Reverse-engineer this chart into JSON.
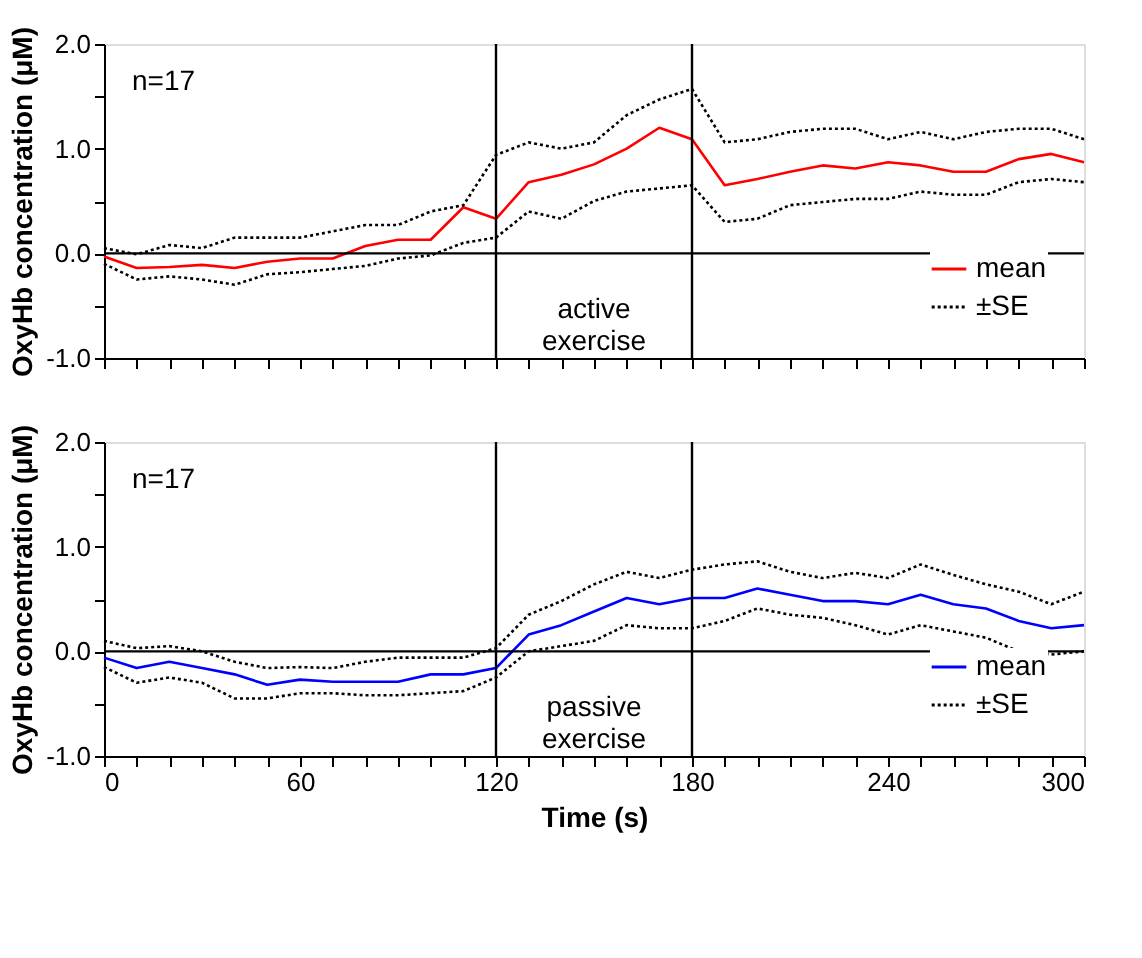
{
  "chart_data": [
    {
      "type": "line",
      "ylabel": "OxyHb concentration (μM)",
      "tick_labels": "y",
      "legend": "bottom right",
      "xlim": [
        0,
        300
      ],
      "ylim": [
        -1,
        2
      ],
      "xticks": [
        0,
        10,
        20,
        30,
        40,
        50,
        60,
        70,
        80,
        90,
        100,
        110,
        120,
        130,
        140,
        150,
        160,
        170,
        180,
        190,
        200,
        210,
        220,
        230,
        240,
        250,
        260,
        270,
        280,
        290,
        300
      ],
      "yticks": [
        {
          "value": -1,
          "label": "-1.0"
        },
        {
          "value": -0.5,
          "label": null
        },
        {
          "value": 0,
          "label": "0.0"
        },
        {
          "value": 0.5,
          "label": null
        },
        {
          "value": 1,
          "label": "1.0"
        },
        {
          "value": 1.5,
          "label": null
        },
        {
          "value": 2,
          "label": "2.0"
        }
      ],
      "x": [
        0,
        10,
        20,
        30,
        40,
        50,
        60,
        70,
        80,
        90,
        100,
        110,
        120,
        130,
        140,
        150,
        160,
        170,
        180,
        190,
        200,
        210,
        220,
        230,
        240,
        250,
        260,
        270,
        280,
        290,
        300
      ],
      "series": [
        {
          "name": "mean",
          "color": "#ff0000",
          "line_style": "solid",
          "values": [
            -0.03,
            -0.14,
            -0.13,
            -0.11,
            -0.14,
            -0.08,
            -0.05,
            -0.05,
            0.07,
            0.13,
            0.13,
            0.44,
            0.33,
            0.68,
            0.75,
            0.85,
            1.0,
            1.2,
            1.09,
            0.65,
            0.71,
            0.78,
            0.84,
            0.81,
            0.87,
            0.84,
            0.78,
            0.78,
            0.9,
            0.95,
            0.87
          ]
        },
        {
          "name": "±SE",
          "color": "#000000",
          "line_style": "dotted",
          "values": [
            0.05,
            -0.01,
            0.08,
            0.05,
            0.15,
            0.15,
            0.15,
            0.21,
            0.27,
            0.27,
            0.4,
            0.46,
            0.94,
            1.06,
            1.0,
            1.06,
            1.32,
            1.47,
            1.57,
            1.06,
            1.09,
            1.16,
            1.19,
            1.19,
            1.09,
            1.16,
            1.09,
            1.16,
            1.19,
            1.19,
            1.09
          ]
        },
        {
          "color": "#000000",
          "line_style": "dotted",
          "values": [
            -0.1,
            -0.25,
            -0.22,
            -0.25,
            -0.3,
            -0.2,
            -0.18,
            -0.15,
            -0.12,
            -0.05,
            -0.02,
            0.1,
            0.15,
            0.4,
            0.33,
            0.5,
            0.59,
            0.62,
            0.65,
            0.3,
            0.33,
            0.46,
            0.49,
            0.52,
            0.52,
            0.59,
            0.56,
            0.56,
            0.68,
            0.71,
            0.68
          ]
        }
      ],
      "ref_lines": [
        {
          "axis": "x",
          "value": 120,
          "color": "#000000"
        },
        {
          "axis": "x",
          "value": 180,
          "color": "#000000"
        },
        {
          "axis": "y",
          "value": 0,
          "color": "#000000"
        }
      ],
      "annotations": [
        "n=17",
        "active exercise"
      ]
    },
    {
      "type": "line",
      "ylabel": "OxyHb concentration (μM)",
      "xlabel": "Time (s)",
      "legend": "bottom right",
      "xlim": [
        0,
        300
      ],
      "ylim": [
        -1,
        2
      ],
      "xticks": [
        0,
        {
          "value": 10,
          "label": null
        },
        {
          "value": 20,
          "label": null
        },
        {
          "value": 30,
          "label": null
        },
        {
          "value": 40,
          "label": null
        },
        {
          "value": 50,
          "label": null
        },
        60,
        {
          "value": 70,
          "label": null
        },
        {
          "value": 80,
          "label": null
        },
        {
          "value": 90,
          "label": null
        },
        {
          "value": 100,
          "label": null
        },
        {
          "value": 110,
          "label": null
        },
        120,
        {
          "value": 130,
          "label": null
        },
        {
          "value": 140,
          "label": null
        },
        {
          "value": 150,
          "label": null
        },
        {
          "value": 160,
          "label": null
        },
        {
          "value": 170,
          "label": null
        },
        180,
        {
          "value": 190,
          "label": null
        },
        {
          "value": 200,
          "label": null
        },
        {
          "value": 210,
          "label": null
        },
        {
          "value": 220,
          "label": null
        },
        {
          "value": 230,
          "label": null
        },
        240,
        {
          "value": 250,
          "label": null
        },
        {
          "value": 260,
          "label": null
        },
        {
          "value": 270,
          "label": null
        },
        {
          "value": 280,
          "label": null
        },
        {
          "value": 290,
          "label": null
        },
        300
      ],
      "yticks": [
        {
          "value": -1,
          "label": "-1.0"
        },
        {
          "value": -0.5,
          "label": null
        },
        {
          "value": 0,
          "label": "0.0"
        },
        {
          "value": 0.5,
          "label": null
        },
        {
          "value": 1,
          "label": "1.0"
        },
        {
          "value": 1.5,
          "label": null
        },
        {
          "value": 2,
          "label": "2.0"
        }
      ],
      "x": [
        0,
        10,
        20,
        30,
        40,
        50,
        60,
        70,
        80,
        90,
        100,
        110,
        120,
        130,
        140,
        150,
        160,
        170,
        180,
        190,
        200,
        210,
        220,
        230,
        240,
        250,
        260,
        270,
        280,
        290,
        300
      ],
      "series": [
        {
          "name": "mean",
          "color": "#0000ff",
          "line_style": "solid",
          "values": [
            -0.06,
            -0.16,
            -0.1,
            -0.16,
            -0.22,
            -0.32,
            -0.27,
            -0.29,
            -0.29,
            -0.29,
            -0.22,
            -0.22,
            -0.16,
            0.16,
            0.25,
            0.38,
            0.51,
            0.45,
            0.51,
            0.51,
            0.6,
            0.54,
            0.48,
            0.48,
            0.45,
            0.54,
            0.45,
            0.41,
            0.29,
            0.22,
            0.25
          ]
        },
        {
          "name": "±SE",
          "color": "#000000",
          "line_style": "dotted",
          "values": [
            0.1,
            0.03,
            0.05,
            0,
            -0.1,
            -0.16,
            -0.15,
            -0.16,
            -0.1,
            -0.06,
            -0.06,
            -0.06,
            0.03,
            0.35,
            0.48,
            0.64,
            0.76,
            0.7,
            0.78,
            0.83,
            0.86,
            0.76,
            0.7,
            0.75,
            0.7,
            0.83,
            0.73,
            0.64,
            0.57,
            0.45,
            0.57
          ]
        },
        {
          "color": "#000000",
          "line_style": "dotted",
          "values": [
            -0.15,
            -0.3,
            -0.25,
            -0.3,
            -0.45,
            -0.45,
            -0.4,
            -0.4,
            -0.42,
            -0.42,
            -0.4,
            -0.38,
            -0.25,
            0,
            0.05,
            0.1,
            0.25,
            0.22,
            0.22,
            0.29,
            0.41,
            0.35,
            0.32,
            0.25,
            0.16,
            0.25,
            0.19,
            0.13,
            0,
            -0.03,
            0
          ]
        }
      ],
      "ref_lines": [
        {
          "axis": "x",
          "value": 120,
          "color": "#000000"
        },
        {
          "axis": "x",
          "value": 180,
          "color": "#000000"
        },
        {
          "axis": "y",
          "value": 0,
          "color": "#000000"
        }
      ],
      "annotations": [
        "n=17",
        "passive exercise"
      ]
    }
  ]
}
